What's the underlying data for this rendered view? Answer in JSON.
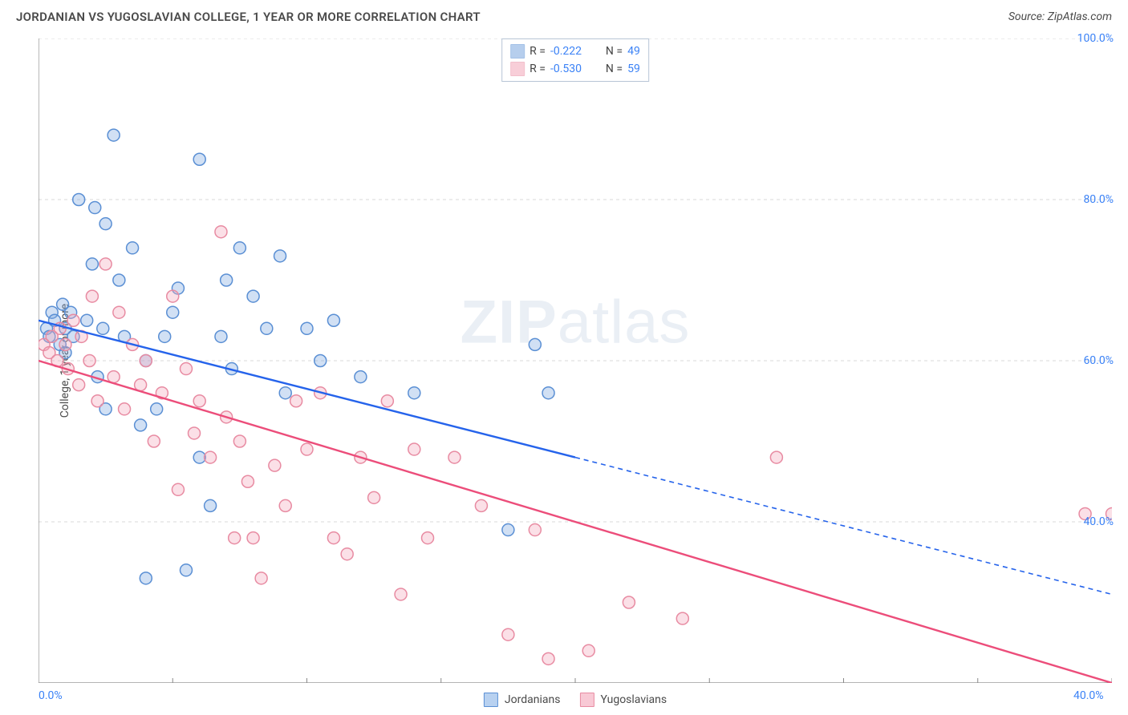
{
  "header": {
    "title": "JORDANIAN VS YUGOSLAVIAN COLLEGE, 1 YEAR OR MORE CORRELATION CHART",
    "source_prefix": "Source: ",
    "source_name": "ZipAtlas.com"
  },
  "chart": {
    "type": "scatter",
    "y_axis_label": "College, 1 year or more",
    "watermark": "ZIPatlas",
    "xlim": [
      0,
      40
    ],
    "ylim": [
      20,
      100
    ],
    "x_ticks": [
      {
        "val": 0,
        "label": "0.0%"
      },
      {
        "val": 40,
        "label": "40.0%"
      }
    ],
    "y_ticks": [
      {
        "val": 40,
        "label": "40.0%"
      },
      {
        "val": 60,
        "label": "60.0%"
      },
      {
        "val": 80,
        "label": "80.0%"
      },
      {
        "val": 100,
        "label": "100.0%"
      }
    ],
    "gridlines_y": [
      40,
      60,
      80,
      100
    ],
    "background_color": "#ffffff",
    "grid_color": "#d8d8d8",
    "axis_color": "#888888",
    "tick_label_color": "#3b82f6",
    "marker_radius": 7.5,
    "marker_fill_opacity": 0.35,
    "marker_stroke_width": 1.5,
    "series": [
      {
        "name": "Jordanians",
        "color": "#7ba7e0",
        "stroke": "#5a8fd4",
        "line_color": "#2563eb",
        "R": "-0.222",
        "N": "49",
        "regression": {
          "x1": 0,
          "y1": 65,
          "x2": 40,
          "y2": 31,
          "solid_until_x": 20
        },
        "points": [
          [
            0.3,
            64
          ],
          [
            0.4,
            63
          ],
          [
            0.5,
            66
          ],
          [
            0.6,
            65
          ],
          [
            0.8,
            62
          ],
          [
            0.9,
            67
          ],
          [
            1.0,
            64
          ],
          [
            1.0,
            61
          ],
          [
            1.2,
            66
          ],
          [
            1.3,
            63
          ],
          [
            1.5,
            80
          ],
          [
            1.8,
            65
          ],
          [
            2.0,
            72
          ],
          [
            2.1,
            79
          ],
          [
            2.2,
            58
          ],
          [
            2.4,
            64
          ],
          [
            2.5,
            54
          ],
          [
            2.5,
            77
          ],
          [
            2.8,
            88
          ],
          [
            3.0,
            70
          ],
          [
            3.2,
            63
          ],
          [
            3.5,
            74
          ],
          [
            3.8,
            52
          ],
          [
            4.0,
            60
          ],
          [
            4.0,
            33
          ],
          [
            4.4,
            54
          ],
          [
            4.7,
            63
          ],
          [
            5.0,
            66
          ],
          [
            5.2,
            69
          ],
          [
            5.5,
            34
          ],
          [
            6.0,
            48
          ],
          [
            6.0,
            85
          ],
          [
            6.4,
            42
          ],
          [
            6.8,
            63
          ],
          [
            7.0,
            70
          ],
          [
            7.2,
            59
          ],
          [
            7.5,
            74
          ],
          [
            8.0,
            68
          ],
          [
            8.5,
            64
          ],
          [
            9.0,
            73
          ],
          [
            9.2,
            56
          ],
          [
            10.0,
            64
          ],
          [
            10.5,
            60
          ],
          [
            11.0,
            65
          ],
          [
            12.0,
            58
          ],
          [
            14.0,
            56
          ],
          [
            17.5,
            39
          ],
          [
            18.5,
            62
          ],
          [
            19.0,
            56
          ]
        ]
      },
      {
        "name": "Yugoslavians",
        "color": "#f3a7b9",
        "stroke": "#e88ba2",
        "line_color": "#ec4d7a",
        "R": "-0.530",
        "N": "59",
        "regression": {
          "x1": 0,
          "y1": 60,
          "x2": 40,
          "y2": 20,
          "solid_until_x": 40
        },
        "points": [
          [
            0.2,
            62
          ],
          [
            0.4,
            61
          ],
          [
            0.5,
            63
          ],
          [
            0.7,
            60
          ],
          [
            0.8,
            64
          ],
          [
            1.0,
            62
          ],
          [
            1.1,
            59
          ],
          [
            1.3,
            65
          ],
          [
            1.5,
            57
          ],
          [
            1.6,
            63
          ],
          [
            1.9,
            60
          ],
          [
            2.0,
            68
          ],
          [
            2.2,
            55
          ],
          [
            2.5,
            72
          ],
          [
            2.8,
            58
          ],
          [
            3.0,
            66
          ],
          [
            3.2,
            54
          ],
          [
            3.5,
            62
          ],
          [
            3.8,
            57
          ],
          [
            4.0,
            60
          ],
          [
            4.3,
            50
          ],
          [
            4.6,
            56
          ],
          [
            5.0,
            68
          ],
          [
            5.2,
            44
          ],
          [
            5.5,
            59
          ],
          [
            5.8,
            51
          ],
          [
            6.0,
            55
          ],
          [
            6.4,
            48
          ],
          [
            6.8,
            76
          ],
          [
            7.0,
            53
          ],
          [
            7.3,
            38
          ],
          [
            7.5,
            50
          ],
          [
            7.8,
            45
          ],
          [
            8.0,
            38
          ],
          [
            8.3,
            33
          ],
          [
            8.8,
            47
          ],
          [
            9.2,
            42
          ],
          [
            9.6,
            55
          ],
          [
            10.0,
            49
          ],
          [
            10.5,
            56
          ],
          [
            11.0,
            38
          ],
          [
            11.5,
            36
          ],
          [
            12.0,
            48
          ],
          [
            12.5,
            43
          ],
          [
            13.0,
            55
          ],
          [
            13.5,
            31
          ],
          [
            14.0,
            49
          ],
          [
            14.5,
            38
          ],
          [
            15.5,
            48
          ],
          [
            16.5,
            42
          ],
          [
            17.5,
            26
          ],
          [
            18.5,
            39
          ],
          [
            19.0,
            23
          ],
          [
            20.5,
            24
          ],
          [
            22.0,
            30
          ],
          [
            24.0,
            28
          ],
          [
            27.5,
            48
          ],
          [
            39.0,
            41
          ],
          [
            40.0,
            41
          ]
        ]
      }
    ],
    "legend_bottom": [
      {
        "label": "Jordanians",
        "swatch_fill": "#b8d1f0",
        "swatch_stroke": "#5a8fd4"
      },
      {
        "label": "Yugoslavians",
        "swatch_fill": "#f8c9d5",
        "swatch_stroke": "#e88ba2"
      }
    ]
  }
}
